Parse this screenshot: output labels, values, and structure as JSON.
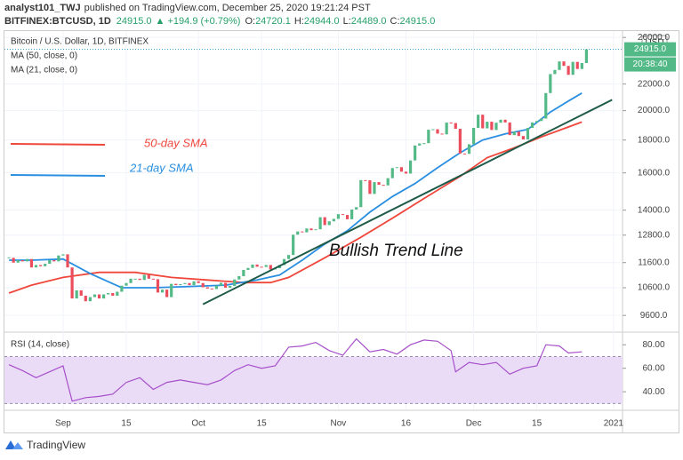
{
  "header": {
    "author": "analyst101_TWJ",
    "published": "published on TradingView.com, December 25, 2020 19:21:24 PST",
    "symbol": "BITFINEX:BTCUSD, 1D",
    "last": "24915.0",
    "change": "▲ +194.9 (+0.79%)",
    "o_label": "O:",
    "o": "24720.1",
    "h_label": "H:",
    "h": "24944.0",
    "l_label": "L:",
    "l": "24489.0",
    "c_label": "C:",
    "c": "24915.0"
  },
  "footer": {
    "brand": "TradingView"
  },
  "chart_data": {
    "type": "candlestick",
    "title": "Bitcoin / U.S. Dollar, 1D, BITFINEX",
    "currency": "USD",
    "price_tag": "24915.0",
    "countdown": "20:38:40",
    "log": true,
    "grid": true,
    "up_color": "#53b987",
    "down_color": "#eb4d5c",
    "values": [
      11800,
      11600,
      11700,
      11650,
      11750,
      11400,
      11500,
      11450,
      11550,
      11700,
      11650,
      11900,
      11950,
      11400,
      10200,
      10500,
      10300,
      10100,
      10250,
      10350,
      10200,
      10350,
      10400,
      10300,
      10450,
      10680,
      10780,
      10950,
      10950,
      10900,
      11100,
      10950,
      10930,
      10420,
      10530,
      10250,
      10750,
      10700,
      10740,
      10780,
      10700,
      10850,
      10780,
      10620,
      10570,
      10550,
      10680,
      10790,
      10600,
      10670,
      10920,
      11050,
      11300,
      11380,
      11520,
      11430,
      11420,
      11500,
      11320,
      11370,
      11500,
      11750,
      11920,
      12820,
      12970,
      12930,
      13110,
      13030,
      13070,
      13650,
      13270,
      13450,
      13570,
      13800,
      13760,
      13550,
      14030,
      14150,
      15590,
      15580,
      14840,
      15480,
      15330,
      15300,
      15700,
      16280,
      16330,
      16070,
      15960,
      16730,
      17650,
      17780,
      17800,
      18680,
      18710,
      18420,
      18370,
      19160,
      19130,
      18740,
      17150,
      17130,
      17730,
      18800,
      19710,
      18770,
      19220,
      18660,
      19150,
      19360,
      19170,
      18320,
      18550,
      18260,
      18040,
      18800,
      19170,
      19270,
      19440,
      21300,
      22800,
      23140,
      23860,
      23480,
      22740,
      23820,
      23220,
      23720,
      24915
    ],
    "xlim": [
      -1,
      136
    ],
    "xticks": [
      {
        "value": 12,
        "label": "Sep"
      },
      {
        "value": 26,
        "label": "15"
      },
      {
        "value": 42,
        "label": "Oct"
      },
      {
        "value": 56,
        "label": "15"
      },
      {
        "value": 73,
        "label": "Nov"
      },
      {
        "value": 88,
        "label": "16"
      },
      {
        "value": 103,
        "label": "Dec"
      },
      {
        "value": 117,
        "label": "15"
      },
      {
        "value": 134,
        "label": "2021"
      }
    ],
    "ylim": [
      9070,
      26600
    ],
    "yticks": [
      {
        "value": 9600,
        "label": "9600.0"
      },
      {
        "value": 10600,
        "label": "10600.0"
      },
      {
        "value": 11600,
        "label": "11600.0"
      },
      {
        "value": 12800,
        "label": "12800.0"
      },
      {
        "value": 14000,
        "label": "14000.0"
      },
      {
        "value": 16000,
        "label": "16000.0"
      },
      {
        "value": 18000,
        "label": "18000.0"
      },
      {
        "value": 20000,
        "label": "20000.0"
      },
      {
        "value": 22000,
        "label": "22000.0"
      },
      {
        "value": 26000,
        "label": "26000.0"
      }
    ],
    "series": [
      {
        "name": "MA (50, close, 0)",
        "legend": "50-day SMA",
        "color": "#f0473c",
        "x": [
          0,
          5,
          12,
          20,
          28,
          36,
          44,
          52,
          58,
          62,
          70,
          78,
          85,
          92,
          100,
          106,
          112,
          118,
          127
        ],
        "values": [
          10400,
          10700,
          11000,
          11200,
          11200,
          11000,
          10900,
          10800,
          10800,
          11000,
          11800,
          12700,
          13600,
          14600,
          15800,
          16900,
          17500,
          18200,
          19200
        ]
      },
      {
        "name": "MA (21, close, 0)",
        "legend": "21-day SMA",
        "color": "#2a8fe0",
        "x": [
          0,
          5,
          12,
          18,
          25,
          32,
          40,
          48,
          55,
          60,
          65,
          70,
          75,
          80,
          85,
          90,
          95,
          100,
          105,
          110,
          115,
          120,
          124,
          127
        ],
        "values": [
          11700,
          11700,
          11750,
          11150,
          10600,
          10600,
          10650,
          10700,
          10900,
          11100,
          11700,
          12400,
          13000,
          13900,
          14700,
          15400,
          16300,
          17200,
          18000,
          18400,
          18700,
          19900,
          20700,
          21300
        ]
      }
    ],
    "trend_line": {
      "label": "Bullish Trend Line",
      "color": "#1e5a48",
      "x": [
        43,
        133.7
      ],
      "values": [
        9990,
        20790
      ]
    },
    "rsi": {
      "name": "RSI (14, close)",
      "color": "#a64fc9",
      "band_color": "#eadcf7",
      "ylim": [
        25,
        90
      ],
      "band": [
        30,
        70
      ],
      "yticks": [
        {
          "value": 80,
          "label": "80.00"
        },
        {
          "value": 60,
          "label": "60.00"
        },
        {
          "value": 40,
          "label": "40.00"
        }
      ],
      "x": [
        0,
        3,
        6,
        9,
        12,
        14,
        17,
        20,
        23,
        26,
        29,
        32,
        35,
        38,
        41,
        44,
        47,
        50,
        53,
        56,
        59,
        62,
        65,
        68,
        71,
        74,
        77,
        80,
        83,
        86,
        89,
        92,
        95,
        98,
        99,
        102,
        105,
        108,
        111,
        114,
        117,
        119,
        122,
        124,
        127
      ],
      "values": [
        63,
        58,
        52,
        57,
        62,
        32,
        35,
        36,
        38,
        48,
        52,
        42,
        48,
        50,
        48,
        46,
        50,
        58,
        63,
        60,
        62,
        78,
        79,
        82,
        75,
        71,
        85,
        74,
        76,
        72,
        80,
        84,
        83,
        75,
        57,
        65,
        63,
        65,
        55,
        60,
        62,
        80,
        79,
        73,
        74
      ]
    }
  }
}
